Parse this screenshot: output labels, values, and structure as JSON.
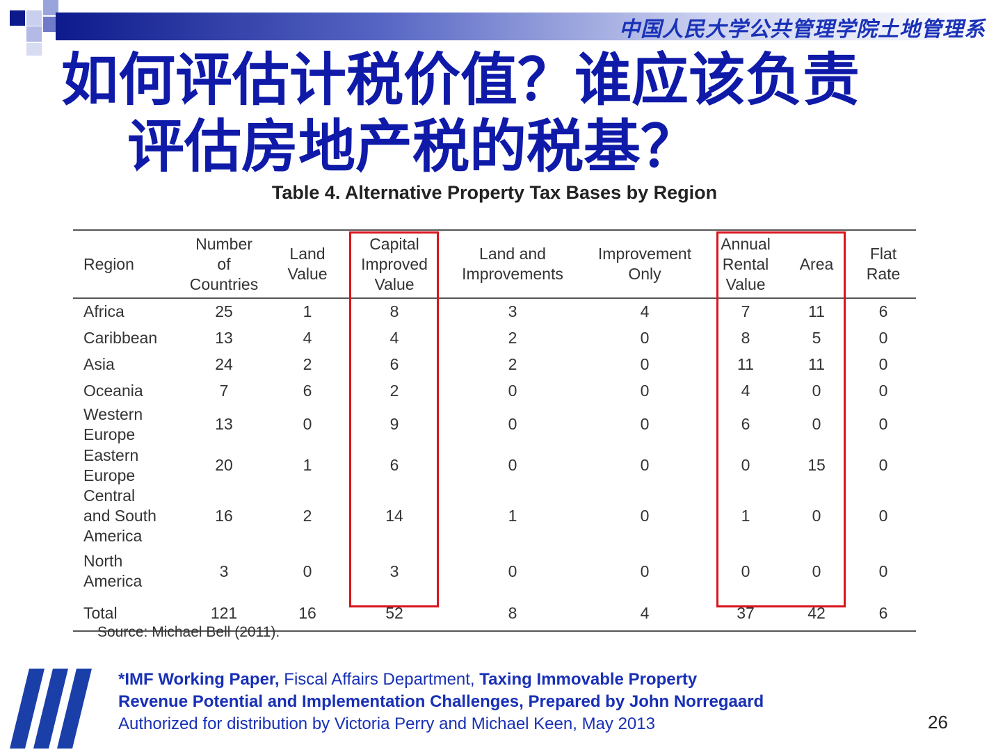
{
  "header": {
    "organization": "中国人民大学公共管理学院土地管理系"
  },
  "title": {
    "line1": "如何评估计税价值？谁应该负责",
    "line2": "评估房地产税的税基？"
  },
  "table": {
    "caption": "Table 4. Alternative Property Tax Bases by Region",
    "columns": [
      "Region",
      "Number of Countries",
      "Land Value",
      "Capital Improved Value",
      "Land and Improvements",
      "Improvement Only",
      "Annual Rental Value",
      "Area",
      "Flat Rate"
    ],
    "rows": [
      {
        "region": "Africa",
        "values": [
          "25",
          "1",
          "8",
          "3",
          "4",
          "7",
          "11",
          "6"
        ]
      },
      {
        "region": "Caribbean",
        "values": [
          "13",
          "4",
          "4",
          "2",
          "0",
          "8",
          "5",
          "0"
        ]
      },
      {
        "region": "Asia",
        "values": [
          "24",
          "2",
          "6",
          "2",
          "0",
          "11",
          "11",
          "0"
        ]
      },
      {
        "region": "Oceania",
        "values": [
          "7",
          "6",
          "2",
          "0",
          "0",
          "4",
          "0",
          "0"
        ]
      },
      {
        "region": "Western\nEurope",
        "values": [
          "13",
          "0",
          "9",
          "0",
          "0",
          "6",
          "0",
          "0"
        ]
      },
      {
        "region": "Eastern\nEurope",
        "values": [
          "20",
          "1",
          "6",
          "0",
          "0",
          "0",
          "15",
          "0"
        ]
      },
      {
        "region": "Central\nand South\nAmerica",
        "values": [
          "16",
          "2",
          "14",
          "1",
          "0",
          "1",
          "0",
          "0"
        ]
      },
      {
        "region": "North\nAmerica",
        "values": [
          "3",
          "0",
          "3",
          "0",
          "0",
          "0",
          "0",
          "0"
        ]
      },
      {
        "region": "Total",
        "values": [
          "121",
          "16",
          "52",
          "8",
          "4",
          "37",
          "42",
          "6"
        ]
      }
    ],
    "highlight_color": "#d8141c"
  },
  "source": "Source: Michael Bell (2011).",
  "footer": {
    "line1_bold_a": "*IMF Working Paper,",
    "line1_normal": " Fiscal Affairs Department, ",
    "line1_bold_b": "Taxing Immovable Property",
    "line2": "Revenue Potential and Implementation Challenges, Prepared by John Norregaard",
    "line3": "Authorized for distribution by Victoria Perry and Michael Keen, May 2013"
  },
  "page_number": "26",
  "colors": {
    "title": "#0f1aa8",
    "accent": "#1830b5",
    "header_band": "#0d1a8c"
  }
}
